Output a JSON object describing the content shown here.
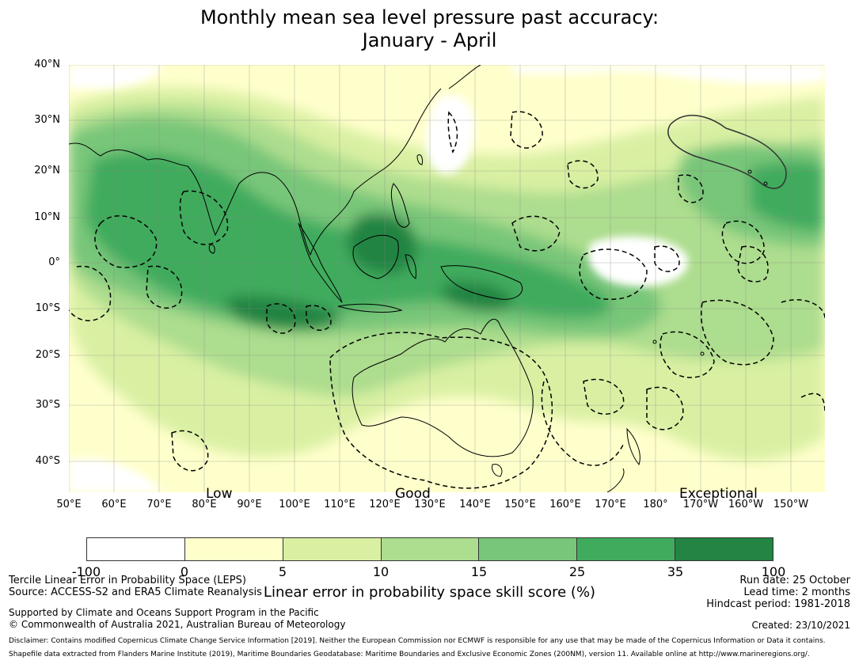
{
  "title_line1": "Monthly mean sea level pressure past accuracy:",
  "title_line2": "January - April",
  "lat_labels": [
    "40°N",
    "30°N",
    "20°N",
    "10°N",
    "0°",
    "10°S",
    "20°S",
    "30°S",
    "40°S"
  ],
  "lon_labels": [
    "50°E",
    "60°E",
    "70°E",
    "80°E",
    "90°E",
    "100°E",
    "110°E",
    "120°E",
    "130°E",
    "140°E",
    "150°E",
    "160°E",
    "170°E",
    "180°",
    "170°W",
    "160°W",
    "150°W"
  ],
  "categories": {
    "low": "Low",
    "good": "Good",
    "exceptional": "Exceptional"
  },
  "colorbar": {
    "ticks": [
      "-100",
      "0",
      "5",
      "10",
      "15",
      "25",
      "35",
      "100"
    ],
    "colors": [
      "#ffffff",
      "#ffffcc",
      "#d9f0a3",
      "#addd8e",
      "#78c679",
      "#41ab5d",
      "#238443"
    ],
    "label": "Linear error in probability space skill score (%)"
  },
  "info_left": {
    "line1": "Tercile Linear Error in Probability Space (LEPS)",
    "line2": "Source: ACCESS-S2 and ERA5 Climate Reanalysis",
    "line3": "Supported by Climate and Oceans Support Program in the Pacific",
    "line4": "© Commonwealth of Australia 2021, Australian Bureau of Meteorology"
  },
  "info_right": {
    "run_date": "Run date: 25 October",
    "lead_time": "Lead time: 2 months",
    "hindcast": "Hindcast period: 1981-2018",
    "created": "Created: 23/10/2021"
  },
  "disclaimer1": "Disclaimer: Contains modified Copernicus Climate Change Service Information [2019]. Neither the European Commission nor ECMWF is responsible for any use that may be made of the Copernicus Information or Data it contains.",
  "disclaimer2": "Shapefile data extracted from Flanders Marine Institute (2019), Maritime Boundaries Geodatabase: Maritime Boundaries and Exclusive Economic Zones (200NM), version 11. Available online at http://www.marineregions.org/."
}
